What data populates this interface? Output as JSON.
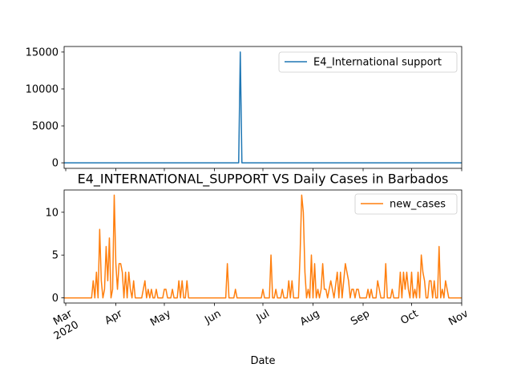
{
  "chart_data": [
    {
      "type": "line",
      "title": "",
      "xlabel": "",
      "ylabel": "",
      "ylim": [
        -750,
        15750
      ],
      "yticks": [
        0,
        5000,
        10000,
        15000
      ],
      "ytick_labels": [
        "0",
        "5000",
        "10000",
        "15000"
      ],
      "legend": "top-right",
      "grid": false,
      "series": [
        {
          "name": "E4_International support",
          "color": "#1f77b4",
          "points": [
            [
              "2020-02-29",
              0
            ],
            [
              "2020-06-16",
              0
            ],
            [
              "2020-06-17",
              15000
            ],
            [
              "2020-06-18",
              0
            ],
            [
              "2020-11-01",
              0
            ]
          ]
        }
      ]
    },
    {
      "type": "line",
      "title": "E4_INTERNATIONAL_SUPPORT VS Daily Cases in Barbados",
      "xlabel": "Date",
      "ylabel": "",
      "ylim": [
        -0.6,
        12.6
      ],
      "yticks": [
        0,
        5,
        10
      ],
      "ytick_labels": [
        "0",
        "5",
        "10"
      ],
      "legend": "top-right",
      "grid": false,
      "xlim": [
        "2020-02-29",
        "2020-11-01"
      ],
      "xticks": [
        {
          "date": "2020-03-01",
          "label": "Mar",
          "sublabel": "2020"
        },
        {
          "date": "2020-04-01",
          "label": "Apr",
          "sublabel": ""
        },
        {
          "date": "2020-05-01",
          "label": "May",
          "sublabel": ""
        },
        {
          "date": "2020-06-01",
          "label": "Jun",
          "sublabel": ""
        },
        {
          "date": "2020-07-01",
          "label": "Jul",
          "sublabel": ""
        },
        {
          "date": "2020-08-01",
          "label": "Aug",
          "sublabel": ""
        },
        {
          "date": "2020-09-01",
          "label": "Sep",
          "sublabel": ""
        },
        {
          "date": "2020-10-01",
          "label": "Oct",
          "sublabel": ""
        },
        {
          "date": "2020-11-01",
          "label": "Nov",
          "sublabel": ""
        }
      ],
      "series": [
        {
          "name": "new_cases",
          "color": "#ff7f0e",
          "points": [
            [
              "2020-02-29",
              0
            ],
            [
              "2020-03-17",
              0
            ],
            [
              "2020-03-18",
              2
            ],
            [
              "2020-03-19",
              0
            ],
            [
              "2020-03-20",
              3
            ],
            [
              "2020-03-21",
              0
            ],
            [
              "2020-03-22",
              8
            ],
            [
              "2020-03-23",
              2
            ],
            [
              "2020-03-24",
              0
            ],
            [
              "2020-03-25",
              1
            ],
            [
              "2020-03-26",
              6
            ],
            [
              "2020-03-27",
              2
            ],
            [
              "2020-03-28",
              7
            ],
            [
              "2020-03-29",
              0
            ],
            [
              "2020-03-30",
              1
            ],
            [
              "2020-03-31",
              12
            ],
            [
              "2020-04-01",
              4
            ],
            [
              "2020-04-02",
              1
            ],
            [
              "2020-04-03",
              4
            ],
            [
              "2020-04-04",
              4
            ],
            [
              "2020-04-05",
              3
            ],
            [
              "2020-04-06",
              0
            ],
            [
              "2020-04-07",
              3
            ],
            [
              "2020-04-08",
              0
            ],
            [
              "2020-04-09",
              3
            ],
            [
              "2020-04-10",
              1
            ],
            [
              "2020-04-11",
              0
            ],
            [
              "2020-04-12",
              2
            ],
            [
              "2020-04-13",
              0
            ],
            [
              "2020-04-16",
              0
            ],
            [
              "2020-04-17",
              0
            ],
            [
              "2020-04-18",
              1
            ],
            [
              "2020-04-19",
              2
            ],
            [
              "2020-04-20",
              0
            ],
            [
              "2020-04-21",
              1
            ],
            [
              "2020-04-22",
              0
            ],
            [
              "2020-04-23",
              1
            ],
            [
              "2020-04-24",
              0
            ],
            [
              "2020-04-25",
              0
            ],
            [
              "2020-04-26",
              1
            ],
            [
              "2020-04-27",
              0
            ],
            [
              "2020-04-30",
              0
            ],
            [
              "2020-05-01",
              1
            ],
            [
              "2020-05-02",
              1
            ],
            [
              "2020-05-03",
              0
            ],
            [
              "2020-05-05",
              0
            ],
            [
              "2020-05-06",
              1
            ],
            [
              "2020-05-07",
              0
            ],
            [
              "2020-05-09",
              0
            ],
            [
              "2020-05-10",
              2
            ],
            [
              "2020-05-11",
              0
            ],
            [
              "2020-05-12",
              2
            ],
            [
              "2020-05-13",
              0
            ],
            [
              "2020-05-14",
              0
            ],
            [
              "2020-05-15",
              2
            ],
            [
              "2020-05-16",
              0
            ],
            [
              "2020-06-08",
              0
            ],
            [
              "2020-06-09",
              4
            ],
            [
              "2020-06-10",
              0
            ],
            [
              "2020-06-13",
              0
            ],
            [
              "2020-06-14",
              1
            ],
            [
              "2020-06-15",
              0
            ],
            [
              "2020-06-30",
              0
            ],
            [
              "2020-07-01",
              1
            ],
            [
              "2020-07-02",
              0
            ],
            [
              "2020-07-05",
              0
            ],
            [
              "2020-07-06",
              5
            ],
            [
              "2020-07-07",
              0
            ],
            [
              "2020-07-08",
              0
            ],
            [
              "2020-07-09",
              1
            ],
            [
              "2020-07-10",
              0
            ],
            [
              "2020-07-12",
              0
            ],
            [
              "2020-07-13",
              1
            ],
            [
              "2020-07-14",
              0
            ],
            [
              "2020-07-16",
              0
            ],
            [
              "2020-07-17",
              2
            ],
            [
              "2020-07-18",
              0
            ],
            [
              "2020-07-19",
              2
            ],
            [
              "2020-07-20",
              0
            ],
            [
              "2020-07-23",
              0
            ],
            [
              "2020-07-24",
              5
            ],
            [
              "2020-07-25",
              12
            ],
            [
              "2020-07-26",
              10
            ],
            [
              "2020-07-27",
              3
            ],
            [
              "2020-07-28",
              0
            ],
            [
              "2020-07-29",
              1
            ],
            [
              "2020-07-30",
              0
            ],
            [
              "2020-07-31",
              5
            ],
            [
              "2020-08-01",
              0
            ],
            [
              "2020-08-02",
              4
            ],
            [
              "2020-08-03",
              0
            ],
            [
              "2020-08-04",
              1
            ],
            [
              "2020-08-05",
              0
            ],
            [
              "2020-08-06",
              1
            ],
            [
              "2020-08-07",
              4
            ],
            [
              "2020-08-08",
              1
            ],
            [
              "2020-08-09",
              1
            ],
            [
              "2020-08-10",
              0
            ],
            [
              "2020-08-12",
              2
            ],
            [
              "2020-08-13",
              1
            ],
            [
              "2020-08-14",
              0
            ],
            [
              "2020-08-16",
              3
            ],
            [
              "2020-08-17",
              0
            ],
            [
              "2020-08-18",
              3
            ],
            [
              "2020-08-19",
              0
            ],
            [
              "2020-08-20",
              2
            ],
            [
              "2020-08-21",
              4
            ],
            [
              "2020-08-22",
              3
            ],
            [
              "2020-08-23",
              2
            ],
            [
              "2020-08-24",
              0
            ],
            [
              "2020-08-25",
              1
            ],
            [
              "2020-08-26",
              1
            ],
            [
              "2020-08-27",
              0
            ],
            [
              "2020-08-28",
              1
            ],
            [
              "2020-08-29",
              1
            ],
            [
              "2020-08-30",
              0
            ],
            [
              "2020-09-03",
              0
            ],
            [
              "2020-09-04",
              1
            ],
            [
              "2020-09-05",
              0
            ],
            [
              "2020-09-06",
              1
            ],
            [
              "2020-09-07",
              0
            ],
            [
              "2020-09-09",
              0
            ],
            [
              "2020-09-10",
              2
            ],
            [
              "2020-09-11",
              1
            ],
            [
              "2020-09-12",
              0
            ],
            [
              "2020-09-14",
              0
            ],
            [
              "2020-09-15",
              4
            ],
            [
              "2020-09-16",
              0
            ],
            [
              "2020-09-18",
              0
            ],
            [
              "2020-09-19",
              1
            ],
            [
              "2020-09-20",
              0
            ],
            [
              "2020-09-23",
              0
            ],
            [
              "2020-09-24",
              3
            ],
            [
              "2020-09-25",
              0
            ],
            [
              "2020-09-26",
              3
            ],
            [
              "2020-09-27",
              1
            ],
            [
              "2020-09-28",
              3
            ],
            [
              "2020-09-29",
              1
            ],
            [
              "2020-09-30",
              0
            ],
            [
              "2020-10-01",
              3
            ],
            [
              "2020-10-02",
              0
            ],
            [
              "2020-10-03",
              1
            ],
            [
              "2020-10-04",
              0
            ],
            [
              "2020-10-05",
              3
            ],
            [
              "2020-10-06",
              0
            ],
            [
              "2020-10-07",
              5
            ],
            [
              "2020-10-08",
              3
            ],
            [
              "2020-10-09",
              2
            ],
            [
              "2020-10-10",
              0
            ],
            [
              "2020-10-11",
              0
            ],
            [
              "2020-10-12",
              2
            ],
            [
              "2020-10-13",
              2
            ],
            [
              "2020-10-14",
              0
            ],
            [
              "2020-10-15",
              2
            ],
            [
              "2020-10-16",
              0
            ],
            [
              "2020-10-17",
              0
            ],
            [
              "2020-10-18",
              6
            ],
            [
              "2020-10-19",
              0
            ],
            [
              "2020-10-20",
              1
            ],
            [
              "2020-10-21",
              0
            ],
            [
              "2020-10-22",
              2
            ],
            [
              "2020-10-23",
              1
            ],
            [
              "2020-10-24",
              0
            ],
            [
              "2020-11-01",
              0
            ]
          ]
        }
      ]
    }
  ]
}
